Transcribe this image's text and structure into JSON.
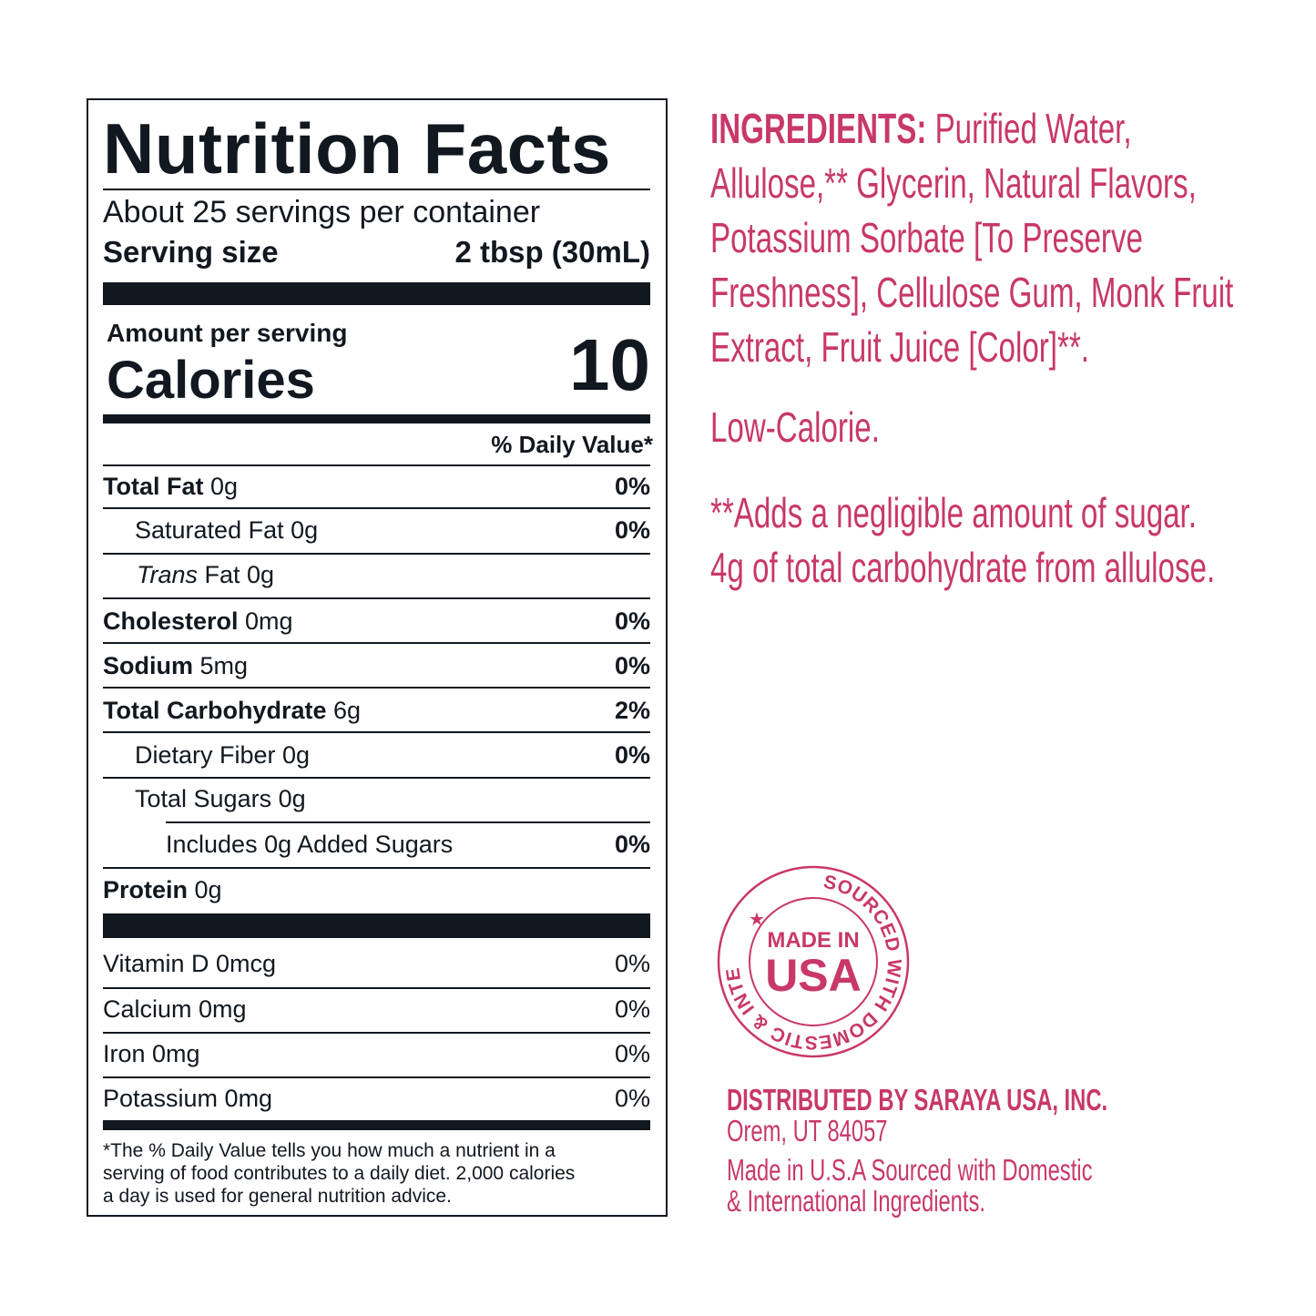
{
  "nutrition": {
    "title": "Nutrition Facts",
    "servings": "About 25 servings per container",
    "serving_size_label": "Serving size",
    "serving_size_value": "2 tbsp (30mL)",
    "amount_per_serving": "Amount per serving",
    "calories_label": "Calories",
    "calories_value": "10",
    "dv_header": "% Daily Value*",
    "rows": [
      {
        "name": "Total Fat",
        "amount": " 0g",
        "pct": "0%"
      },
      {
        "name": "Saturated Fat 0g",
        "amount": "",
        "pct": "0%"
      },
      {
        "name": "Trans",
        "amount": " Fat 0g",
        "pct": ""
      },
      {
        "name": "Cholesterol",
        "amount": " 0mg",
        "pct": "0%"
      },
      {
        "name": "Sodium",
        "amount": " 5mg",
        "pct": "0%"
      },
      {
        "name": "Total Carbohydrate",
        "amount": " 6g",
        "pct": "2%"
      },
      {
        "name": "Dietary Fiber 0g",
        "amount": "",
        "pct": "0%"
      },
      {
        "name": "Total Sugars 0g",
        "amount": "",
        "pct": ""
      },
      {
        "name": "Includes 0g Added Sugars",
        "amount": "",
        "pct": "0%"
      },
      {
        "name": "Protein",
        "amount": " 0g",
        "pct": ""
      }
    ],
    "vitamins": [
      {
        "name": "Vitamin D 0mcg",
        "pct": "0%"
      },
      {
        "name": "Calcium 0mg",
        "pct": "0%"
      },
      {
        "name": "Iron 0mg",
        "pct": "0%"
      },
      {
        "name": "Potassium 0mg",
        "pct": "0%"
      }
    ],
    "footnote": [
      "*The % Daily Value tells you how much a nutrient in a",
      "serving of food contributes to a daily diet. 2,000 calories",
      "a day is used for general nutrition advice."
    ]
  },
  "ingredients": {
    "label": "INGREDIENTS:",
    "lines": [
      " Purified Water,",
      "Allulose,** Glycerin, Natural Flavors,",
      "Potassium Sorbate [To Preserve",
      "Freshness], Cellulose Gum, Monk Fruit",
      "Extract, Fruit Juice [Color]**."
    ],
    "claim": "Low-Calorie.",
    "notes": [
      "**Adds a negligible amount of sugar.",
      "4g of total carbohydrate from allulose."
    ]
  },
  "seal": {
    "ring_text": "SOURCED WITH DOMESTIC & INTERNATIONAL INGREDIENTS",
    "line1": "MADE IN",
    "line2": "USA"
  },
  "distributor": {
    "name": "DISTRIBUTED BY SARAYA USA, INC.",
    "address": "Orem, UT 84057",
    "origin": [
      "Made in U.S.A Sourced with Domestic",
      "& International Ingredients."
    ]
  },
  "colors": {
    "ink": "#121820",
    "accent": "#c8386a"
  }
}
